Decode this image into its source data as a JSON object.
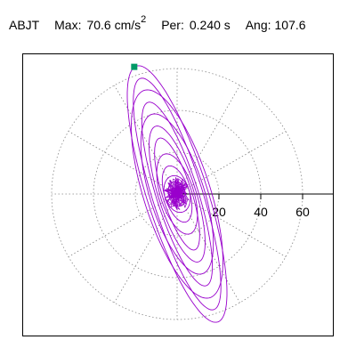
{
  "header": {
    "station": "ABJT",
    "max_label": "Max:",
    "max_value": "70.6 cm/s",
    "max_exponent": "2",
    "per_label": "Per:",
    "per_value": "0.240 s",
    "ang_label": "Ang:",
    "ang_value": "107.6"
  },
  "chart_data": {
    "type": "polar-hodogram",
    "radial_ticks": [
      20,
      40,
      60
    ],
    "rings": [
      20,
      40,
      60
    ],
    "spoke_angles_deg": [
      0,
      30,
      60,
      90,
      120,
      150,
      180,
      210,
      240,
      270,
      300,
      330
    ],
    "axis_line_angle_deg": 0,
    "trace_color": "#9900cc",
    "grid_color": "#888888",
    "marker_color": "#009966",
    "marker": {
      "x": -20.5,
      "y": 60.8
    },
    "max_amplitude": 70.6,
    "angle_deg": 107.6,
    "ellipses": [
      {
        "semi_major": 64.2,
        "semi_minor": 14.5,
        "phase_deg": 18.6
      },
      {
        "semi_major": 58,
        "semi_minor": 12,
        "phase_deg": 200
      },
      {
        "semi_major": 52,
        "semi_minor": 16,
        "phase_deg": 40
      },
      {
        "semi_major": 46,
        "semi_minor": 10,
        "phase_deg": 170
      },
      {
        "semi_major": 40,
        "semi_minor": 13,
        "phase_deg": 80
      },
      {
        "semi_major": 34,
        "semi_minor": 9,
        "phase_deg": 250
      },
      {
        "semi_major": 28,
        "semi_minor": 7,
        "phase_deg": 120
      },
      {
        "semi_major": 20,
        "semi_minor": 8,
        "phase_deg": 300
      },
      {
        "semi_major": 14,
        "semi_minor": 6,
        "phase_deg": 20
      },
      {
        "semi_major": 9,
        "semi_minor": 6,
        "phase_deg": 140
      },
      {
        "semi_major": 6,
        "semi_minor": 4,
        "phase_deg": 260
      }
    ],
    "noise_scribble_radius": 7
  }
}
